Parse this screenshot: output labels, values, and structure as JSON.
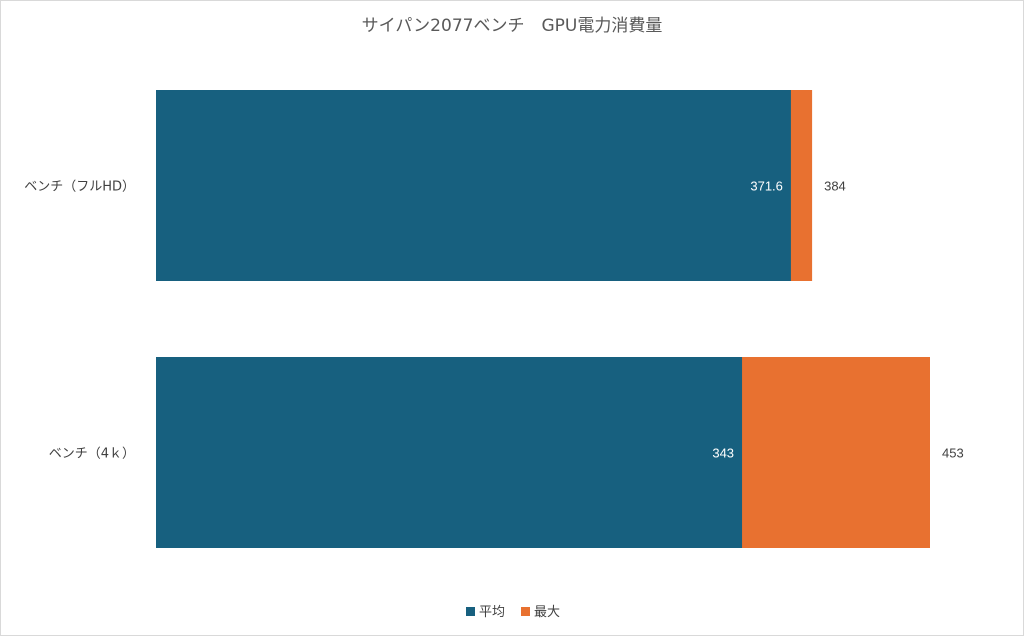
{
  "chart_data": {
    "type": "bar",
    "orientation": "horizontal",
    "title": "サイパン2077ベンチ　GPU電力消費量",
    "categories": [
      "ベンチ（フルHD）",
      "ベンチ（4ｋ）"
    ],
    "series": [
      {
        "name": "平均",
        "values": [
          371.6,
          343
        ],
        "color": "#17607f"
      },
      {
        "name": "最大",
        "values": [
          384,
          453
        ],
        "color": "#e87130"
      }
    ],
    "overlap": true,
    "xlim": [
      0,
      453
    ],
    "grid": false,
    "legend_position": "bottom"
  }
}
